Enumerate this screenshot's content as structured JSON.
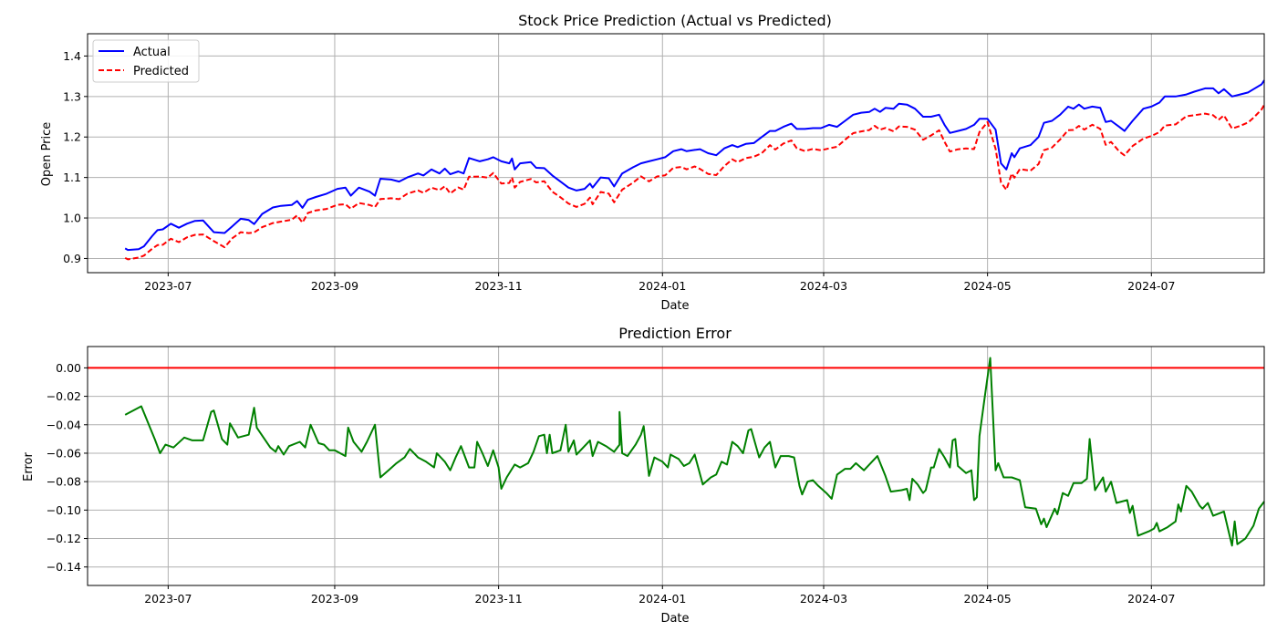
{
  "charts": [
    {
      "title": "Stock Price Prediction (Actual vs Predicted)",
      "xlabel": "Date",
      "ylabel": "Open Price"
    },
    {
      "title": "Prediction Error",
      "xlabel": "Date",
      "ylabel": "Error"
    }
  ],
  "chart_data": [
    {
      "type": "line",
      "title": "Stock Price Prediction (Actual vs Predicted)",
      "xlabel": "Date",
      "ylabel": "Open Price",
      "x_range": [
        "2023-06-01",
        "2024-08-12"
      ],
      "ylim": [
        0.865,
        1.455
      ],
      "x_ticks": [
        "2023-07-01",
        "2023-09-01",
        "2023-11-01",
        "2024-01-01",
        "2024-03-01",
        "2024-05-01",
        "2024-07-01"
      ],
      "x_tick_labels": [
        "2023-07",
        "2023-09",
        "2023-11",
        "2024-01",
        "2024-03",
        "2024-05",
        "2024-07"
      ],
      "y_ticks": [
        0.9,
        1.0,
        1.1,
        1.2,
        1.3,
        1.4
      ],
      "y_tick_labels": [
        "0.9",
        "1.0",
        "1.1",
        "1.2",
        "1.3",
        "1.4"
      ],
      "grid": true,
      "legend": "top-left",
      "series": [
        {
          "name": "Actual",
          "color": "#0000ff",
          "style": "solid",
          "points": [
            [
              "2023-06-15",
              0.925
            ],
            [
              "2023-06-16",
              0.921
            ],
            [
              "2023-06-20",
              0.923
            ],
            [
              "2023-06-22",
              0.93
            ],
            [
              "2023-06-25",
              0.955
            ],
            [
              "2023-06-27",
              0.97
            ],
            [
              "2023-06-29",
              0.972
            ],
            [
              "2023-07-02",
              0.986
            ],
            [
              "2023-07-05",
              0.976
            ],
            [
              "2023-07-08",
              0.986
            ],
            [
              "2023-07-11",
              0.993
            ],
            [
              "2023-07-14",
              0.994
            ],
            [
              "2023-07-18",
              0.965
            ],
            [
              "2023-07-22",
              0.963
            ],
            [
              "2023-07-25",
              0.98
            ],
            [
              "2023-07-28",
              0.998
            ],
            [
              "2023-07-31",
              0.995
            ],
            [
              "2023-08-02",
              0.985
            ],
            [
              "2023-08-05",
              1.01
            ],
            [
              "2023-08-09",
              1.026
            ],
            [
              "2023-08-12",
              1.03
            ],
            [
              "2023-08-16",
              1.032
            ],
            [
              "2023-08-18",
              1.042
            ],
            [
              "2023-08-20",
              1.025
            ],
            [
              "2023-08-22",
              1.045
            ],
            [
              "2023-08-25",
              1.052
            ],
            [
              "2023-08-29",
              1.06
            ],
            [
              "2023-09-02",
              1.072
            ],
            [
              "2023-09-05",
              1.075
            ],
            [
              "2023-09-07",
              1.055
            ],
            [
              "2023-09-10",
              1.075
            ],
            [
              "2023-09-14",
              1.065
            ],
            [
              "2023-09-16",
              1.055
            ],
            [
              "2023-09-18",
              1.097
            ],
            [
              "2023-09-22",
              1.095
            ],
            [
              "2023-09-25",
              1.09
            ],
            [
              "2023-09-28",
              1.1
            ],
            [
              "2023-10-02",
              1.11
            ],
            [
              "2023-10-04",
              1.105
            ],
            [
              "2023-10-07",
              1.12
            ],
            [
              "2023-10-10",
              1.11
            ],
            [
              "2023-10-12",
              1.122
            ],
            [
              "2023-10-14",
              1.108
            ],
            [
              "2023-10-17",
              1.115
            ],
            [
              "2023-10-19",
              1.11
            ],
            [
              "2023-10-21",
              1.148
            ],
            [
              "2023-10-25",
              1.14
            ],
            [
              "2023-10-28",
              1.145
            ],
            [
              "2023-10-30",
              1.15
            ],
            [
              "2023-11-02",
              1.14
            ],
            [
              "2023-11-05",
              1.135
            ],
            [
              "2023-11-06",
              1.147
            ],
            [
              "2023-11-07",
              1.12
            ],
            [
              "2023-11-09",
              1.135
            ],
            [
              "2023-11-13",
              1.138
            ],
            [
              "2023-11-15",
              1.124
            ],
            [
              "2023-11-18",
              1.123
            ],
            [
              "2023-11-21",
              1.105
            ],
            [
              "2023-11-24",
              1.09
            ],
            [
              "2023-11-27",
              1.075
            ],
            [
              "2023-11-30",
              1.068
            ],
            [
              "2023-12-03",
              1.072
            ],
            [
              "2023-12-05",
              1.085
            ],
            [
              "2023-12-06",
              1.075
            ],
            [
              "2023-12-09",
              1.1
            ],
            [
              "2023-12-12",
              1.098
            ],
            [
              "2023-12-14",
              1.078
            ],
            [
              "2023-12-17",
              1.11
            ],
            [
              "2023-12-21",
              1.125
            ],
            [
              "2023-12-24",
              1.135
            ],
            [
              "2023-12-27",
              1.14
            ],
            [
              "2023-12-30",
              1.145
            ],
            [
              "2024-01-02",
              1.15
            ],
            [
              "2024-01-05",
              1.165
            ],
            [
              "2024-01-08",
              1.17
            ],
            [
              "2024-01-10",
              1.165
            ],
            [
              "2024-01-13",
              1.168
            ],
            [
              "2024-01-15",
              1.17
            ],
            [
              "2024-01-18",
              1.16
            ],
            [
              "2024-01-21",
              1.155
            ],
            [
              "2024-01-24",
              1.172
            ],
            [
              "2024-01-27",
              1.18
            ],
            [
              "2024-01-29",
              1.175
            ],
            [
              "2024-02-01",
              1.183
            ],
            [
              "2024-02-04",
              1.185
            ],
            [
              "2024-02-07",
              1.2
            ],
            [
              "2024-02-10",
              1.215
            ],
            [
              "2024-02-12",
              1.215
            ],
            [
              "2024-02-15",
              1.225
            ],
            [
              "2024-02-18",
              1.233
            ],
            [
              "2024-02-20",
              1.22
            ],
            [
              "2024-02-23",
              1.22
            ],
            [
              "2024-02-26",
              1.222
            ],
            [
              "2024-02-29",
              1.222
            ],
            [
              "2024-03-03",
              1.23
            ],
            [
              "2024-03-06",
              1.225
            ],
            [
              "2024-03-09",
              1.24
            ],
            [
              "2024-03-12",
              1.255
            ],
            [
              "2024-03-15",
              1.26
            ],
            [
              "2024-03-18",
              1.262
            ],
            [
              "2024-03-20",
              1.27
            ],
            [
              "2024-03-22",
              1.262
            ],
            [
              "2024-03-24",
              1.272
            ],
            [
              "2024-03-27",
              1.27
            ],
            [
              "2024-03-29",
              1.282
            ],
            [
              "2024-04-01",
              1.28
            ],
            [
              "2024-04-04",
              1.27
            ],
            [
              "2024-04-07",
              1.25
            ],
            [
              "2024-04-10",
              1.25
            ],
            [
              "2024-04-13",
              1.255
            ],
            [
              "2024-04-15",
              1.23
            ],
            [
              "2024-04-17",
              1.21
            ],
            [
              "2024-04-20",
              1.215
            ],
            [
              "2024-04-23",
              1.22
            ],
            [
              "2024-04-26",
              1.23
            ],
            [
              "2024-04-28",
              1.245
            ],
            [
              "2024-05-01",
              1.245
            ],
            [
              "2024-05-04",
              1.218
            ],
            [
              "2024-05-06",
              1.135
            ],
            [
              "2024-05-08",
              1.12
            ],
            [
              "2024-05-10",
              1.16
            ],
            [
              "2024-05-11",
              1.15
            ],
            [
              "2024-05-13",
              1.172
            ],
            [
              "2024-05-17",
              1.18
            ],
            [
              "2024-05-20",
              1.2
            ],
            [
              "2024-05-22",
              1.235
            ],
            [
              "2024-05-25",
              1.24
            ],
            [
              "2024-05-28",
              1.255
            ],
            [
              "2024-05-31",
              1.275
            ],
            [
              "2024-06-02",
              1.27
            ],
            [
              "2024-06-04",
              1.28
            ],
            [
              "2024-06-06",
              1.27
            ],
            [
              "2024-06-09",
              1.275
            ],
            [
              "2024-06-12",
              1.272
            ],
            [
              "2024-06-14",
              1.237
            ],
            [
              "2024-06-16",
              1.24
            ],
            [
              "2024-06-19",
              1.225
            ],
            [
              "2024-06-21",
              1.215
            ],
            [
              "2024-06-24",
              1.24
            ],
            [
              "2024-06-28",
              1.27
            ],
            [
              "2024-07-01",
              1.275
            ],
            [
              "2024-07-04",
              1.285
            ],
            [
              "2024-07-06",
              1.3
            ],
            [
              "2024-07-10",
              1.3
            ],
            [
              "2024-07-14",
              1.305
            ],
            [
              "2024-07-17",
              1.312
            ],
            [
              "2024-07-21",
              1.32
            ],
            [
              "2024-07-24",
              1.32
            ],
            [
              "2024-07-26",
              1.308
            ],
            [
              "2024-07-28",
              1.318
            ],
            [
              "2024-07-31",
              1.3
            ],
            [
              "2024-08-03",
              1.305
            ],
            [
              "2024-08-06",
              1.31
            ],
            [
              "2024-08-08",
              1.318
            ],
            [
              "2024-08-11",
              1.33
            ],
            [
              "2024-08-12",
              1.34
            ]
          ]
        },
        {
          "name": "Predicted",
          "color": "#ff0000",
          "style": "dashed",
          "points": []
        }
      ]
    },
    {
      "type": "line",
      "title": "Prediction Error",
      "xlabel": "Date",
      "ylabel": "Error",
      "x_range": [
        "2023-06-01",
        "2024-08-12"
      ],
      "ylim": [
        -0.153,
        0.015
      ],
      "x_ticks": [
        "2023-07-01",
        "2023-09-01",
        "2023-11-01",
        "2024-01-01",
        "2024-03-01",
        "2024-05-01",
        "2024-07-01"
      ],
      "x_tick_labels": [
        "2023-07",
        "2023-09",
        "2023-11",
        "2024-01",
        "2024-03",
        "2024-05",
        "2024-07"
      ],
      "y_ticks": [
        0.0,
        -0.02,
        -0.04,
        -0.06,
        -0.08,
        -0.1,
        -0.12,
        -0.14
      ],
      "y_tick_labels": [
        "0.00",
        "−0.02",
        "−0.04",
        "−0.06",
        "−0.08",
        "−0.10",
        "−0.12",
        "−0.14"
      ],
      "grid": true,
      "hline": {
        "y": 0.0,
        "color": "#ff0000"
      },
      "series": [
        {
          "color": "#008000",
          "style": "solid",
          "points": []
        }
      ]
    }
  ]
}
